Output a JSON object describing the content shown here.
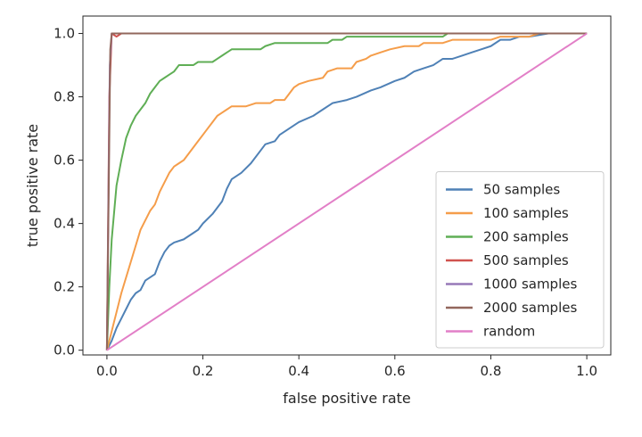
{
  "chart_data": {
    "type": "line",
    "xlabel": "false positive rate",
    "ylabel": "true positive rate",
    "xlim": [
      -0.05,
      1.05
    ],
    "ylim": [
      -0.015,
      1.055
    ],
    "xticks": [
      "0.0",
      "0.2",
      "0.4",
      "0.6",
      "0.8",
      "1.0"
    ],
    "yticks": [
      "0.0",
      "0.2",
      "0.4",
      "0.6",
      "0.8",
      "1.0"
    ],
    "grid": false,
    "legend_position": "bottom-right",
    "series": [
      {
        "name": "50 samples",
        "color": "#4f81b6",
        "points": [
          [
            0,
            0
          ],
          [
            0.01,
            0.03
          ],
          [
            0.02,
            0.07
          ],
          [
            0.03,
            0.1
          ],
          [
            0.04,
            0.13
          ],
          [
            0.05,
            0.16
          ],
          [
            0.06,
            0.18
          ],
          [
            0.07,
            0.19
          ],
          [
            0.08,
            0.22
          ],
          [
            0.1,
            0.24
          ],
          [
            0.11,
            0.28
          ],
          [
            0.12,
            0.31
          ],
          [
            0.13,
            0.33
          ],
          [
            0.14,
            0.34
          ],
          [
            0.16,
            0.35
          ],
          [
            0.18,
            0.37
          ],
          [
            0.19,
            0.38
          ],
          [
            0.2,
            0.4
          ],
          [
            0.22,
            0.43
          ],
          [
            0.23,
            0.45
          ],
          [
            0.24,
            0.47
          ],
          [
            0.25,
            0.51
          ],
          [
            0.26,
            0.54
          ],
          [
            0.28,
            0.56
          ],
          [
            0.3,
            0.59
          ],
          [
            0.32,
            0.63
          ],
          [
            0.33,
            0.65
          ],
          [
            0.35,
            0.66
          ],
          [
            0.36,
            0.68
          ],
          [
            0.38,
            0.7
          ],
          [
            0.4,
            0.72
          ],
          [
            0.43,
            0.74
          ],
          [
            0.45,
            0.76
          ],
          [
            0.47,
            0.78
          ],
          [
            0.5,
            0.79
          ],
          [
            0.52,
            0.8
          ],
          [
            0.55,
            0.82
          ],
          [
            0.57,
            0.83
          ],
          [
            0.6,
            0.85
          ],
          [
            0.62,
            0.86
          ],
          [
            0.64,
            0.88
          ],
          [
            0.66,
            0.89
          ],
          [
            0.68,
            0.9
          ],
          [
            0.7,
            0.92
          ],
          [
            0.72,
            0.92
          ],
          [
            0.74,
            0.93
          ],
          [
            0.76,
            0.94
          ],
          [
            0.78,
            0.95
          ],
          [
            0.8,
            0.96
          ],
          [
            0.82,
            0.98
          ],
          [
            0.84,
            0.98
          ],
          [
            0.86,
            0.99
          ],
          [
            0.88,
            0.99
          ],
          [
            0.92,
            1.0
          ],
          [
            1.0,
            1.0
          ]
        ]
      },
      {
        "name": "100 samples",
        "color": "#f59d4a",
        "points": [
          [
            0,
            0
          ],
          [
            0.01,
            0.06
          ],
          [
            0.02,
            0.12
          ],
          [
            0.03,
            0.18
          ],
          [
            0.04,
            0.23
          ],
          [
            0.05,
            0.28
          ],
          [
            0.06,
            0.33
          ],
          [
            0.07,
            0.38
          ],
          [
            0.08,
            0.41
          ],
          [
            0.09,
            0.44
          ],
          [
            0.1,
            0.46
          ],
          [
            0.11,
            0.5
          ],
          [
            0.12,
            0.53
          ],
          [
            0.13,
            0.56
          ],
          [
            0.14,
            0.58
          ],
          [
            0.15,
            0.59
          ],
          [
            0.16,
            0.6
          ],
          [
            0.17,
            0.62
          ],
          [
            0.18,
            0.64
          ],
          [
            0.19,
            0.66
          ],
          [
            0.2,
            0.68
          ],
          [
            0.21,
            0.7
          ],
          [
            0.22,
            0.72
          ],
          [
            0.23,
            0.74
          ],
          [
            0.24,
            0.75
          ],
          [
            0.25,
            0.76
          ],
          [
            0.26,
            0.77
          ],
          [
            0.29,
            0.77
          ],
          [
            0.31,
            0.78
          ],
          [
            0.34,
            0.78
          ],
          [
            0.35,
            0.79
          ],
          [
            0.37,
            0.79
          ],
          [
            0.38,
            0.81
          ],
          [
            0.39,
            0.83
          ],
          [
            0.4,
            0.84
          ],
          [
            0.42,
            0.85
          ],
          [
            0.45,
            0.86
          ],
          [
            0.46,
            0.88
          ],
          [
            0.48,
            0.89
          ],
          [
            0.51,
            0.89
          ],
          [
            0.52,
            0.91
          ],
          [
            0.54,
            0.92
          ],
          [
            0.55,
            0.93
          ],
          [
            0.57,
            0.94
          ],
          [
            0.59,
            0.95
          ],
          [
            0.62,
            0.96
          ],
          [
            0.65,
            0.96
          ],
          [
            0.66,
            0.97
          ],
          [
            0.7,
            0.97
          ],
          [
            0.72,
            0.98
          ],
          [
            0.8,
            0.98
          ],
          [
            0.82,
            0.99
          ],
          [
            0.88,
            0.99
          ],
          [
            0.9,
            1.0
          ],
          [
            1.0,
            1.0
          ]
        ]
      },
      {
        "name": "200 samples",
        "color": "#5fae55",
        "points": [
          [
            0,
            0
          ],
          [
            0.005,
            0.2
          ],
          [
            0.01,
            0.35
          ],
          [
            0.02,
            0.52
          ],
          [
            0.03,
            0.6
          ],
          [
            0.04,
            0.67
          ],
          [
            0.05,
            0.71
          ],
          [
            0.06,
            0.74
          ],
          [
            0.07,
            0.76
          ],
          [
            0.08,
            0.78
          ],
          [
            0.09,
            0.81
          ],
          [
            0.1,
            0.83
          ],
          [
            0.11,
            0.85
          ],
          [
            0.12,
            0.86
          ],
          [
            0.13,
            0.87
          ],
          [
            0.14,
            0.88
          ],
          [
            0.15,
            0.9
          ],
          [
            0.18,
            0.9
          ],
          [
            0.19,
            0.91
          ],
          [
            0.22,
            0.91
          ],
          [
            0.23,
            0.92
          ],
          [
            0.24,
            0.93
          ],
          [
            0.25,
            0.94
          ],
          [
            0.26,
            0.95
          ],
          [
            0.32,
            0.95
          ],
          [
            0.33,
            0.96
          ],
          [
            0.35,
            0.97
          ],
          [
            0.46,
            0.97
          ],
          [
            0.47,
            0.98
          ],
          [
            0.49,
            0.98
          ],
          [
            0.5,
            0.99
          ],
          [
            0.7,
            0.99
          ],
          [
            0.71,
            1.0
          ],
          [
            1.0,
            1.0
          ]
        ]
      },
      {
        "name": "500 samples",
        "color": "#d0524f",
        "points": [
          [
            0,
            0
          ],
          [
            0.005,
            0.8
          ],
          [
            0.01,
            1.0
          ],
          [
            0.02,
            0.99
          ],
          [
            0.03,
            1.0
          ],
          [
            1.0,
            1.0
          ]
        ]
      },
      {
        "name": "1000 samples",
        "color": "#9779b8",
        "points": [
          [
            0,
            0
          ],
          [
            0.006,
            0.9
          ],
          [
            0.01,
            1.0
          ],
          [
            1.0,
            1.0
          ]
        ]
      },
      {
        "name": "2000 samples",
        "color": "#92675c",
        "points": [
          [
            0,
            0
          ],
          [
            0.007,
            0.95
          ],
          [
            0.01,
            1.0
          ],
          [
            1.0,
            1.0
          ]
        ]
      },
      {
        "name": "random",
        "color": "#e27fc7",
        "points": [
          [
            0,
            0
          ],
          [
            1,
            1
          ]
        ]
      }
    ]
  }
}
